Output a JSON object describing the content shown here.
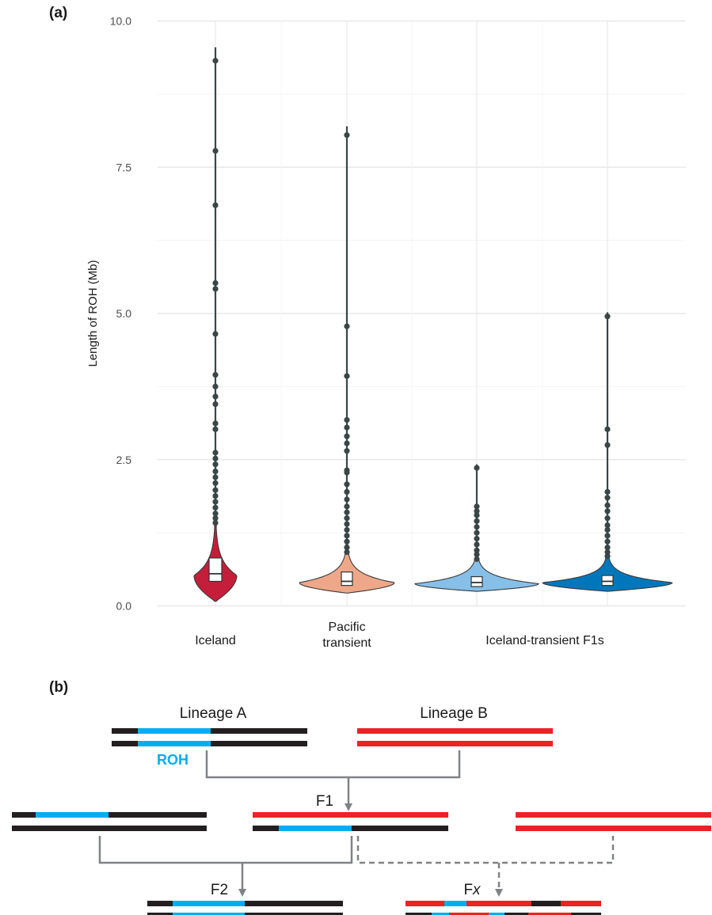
{
  "panel_a": {
    "label": "(a)",
    "chart_data": {
      "type": "violin",
      "ylabel": "Length of ROH (Mb)",
      "xlabel": "",
      "ylim": [
        0,
        10
      ],
      "yticks": [
        0.0,
        2.5,
        5.0,
        7.5,
        10.0
      ],
      "ytick_labels": [
        "0.0",
        "2.5",
        "5.0",
        "7.5",
        "10.0"
      ],
      "grid": true,
      "categories": [
        "Iceland",
        "Pacific\ntransient",
        "Iceland-transient F1s"
      ],
      "series": [
        {
          "color": "#c41e3a",
          "box": {
            "q1": 0.42,
            "median": 0.55,
            "q3": 0.82
          },
          "whisker_max": 9.55,
          "violin_min": 0.08,
          "outliers": [
            9.32,
            7.78,
            6.85,
            5.52,
            5.42,
            4.65,
            3.95,
            3.75,
            3.58,
            3.45,
            3.12,
            3.02,
            2.62,
            2.52,
            2.42,
            2.3,
            2.2,
            2.1,
            1.98,
            1.88,
            1.78,
            1.68,
            1.58,
            1.5,
            1.42
          ]
        },
        {
          "color": "#eea889",
          "box": {
            "q1": 0.35,
            "median": 0.42,
            "q3": 0.58
          },
          "whisker_max": 8.2,
          "violin_min": 0.22,
          "outliers": [
            8.05,
            4.78,
            3.93,
            3.18,
            3.05,
            2.9,
            2.78,
            2.65,
            2.32,
            2.28,
            2.08,
            1.95,
            1.82,
            1.7,
            1.6,
            1.5,
            1.4,
            1.3,
            1.2,
            1.1,
            1.0,
            0.92
          ]
        },
        {
          "color": "#86c0e9",
          "box": {
            "q1": 0.33,
            "median": 0.4,
            "q3": 0.5
          },
          "whisker_max": 2.42,
          "violin_min": 0.25,
          "outliers": [
            2.36,
            1.7,
            1.62,
            1.55,
            1.45,
            1.35,
            1.25,
            1.15,
            1.05,
            0.95,
            0.88,
            0.8
          ]
        },
        {
          "color": "#0077bb",
          "box": {
            "q1": 0.35,
            "median": 0.42,
            "q3": 0.52
          },
          "whisker_max": 5.02,
          "violin_min": 0.25,
          "outliers": [
            4.95,
            3.02,
            2.75,
            1.95,
            1.85,
            1.72,
            1.62,
            1.5,
            1.38,
            1.3,
            1.2,
            1.1,
            1.0,
            0.92,
            0.85
          ]
        }
      ]
    }
  },
  "panel_b": {
    "label": "(b)",
    "lineage_a": "Lineage A",
    "lineage_b": "Lineage B",
    "roh_label": "ROH",
    "f1_label": "F1",
    "f2_label": "F2",
    "fx_label_main": "F",
    "fx_label_italic": "x",
    "colors": {
      "black": "#231f20",
      "blue": "#00aeef",
      "red": "#ec2227",
      "connector": "#808285"
    }
  }
}
